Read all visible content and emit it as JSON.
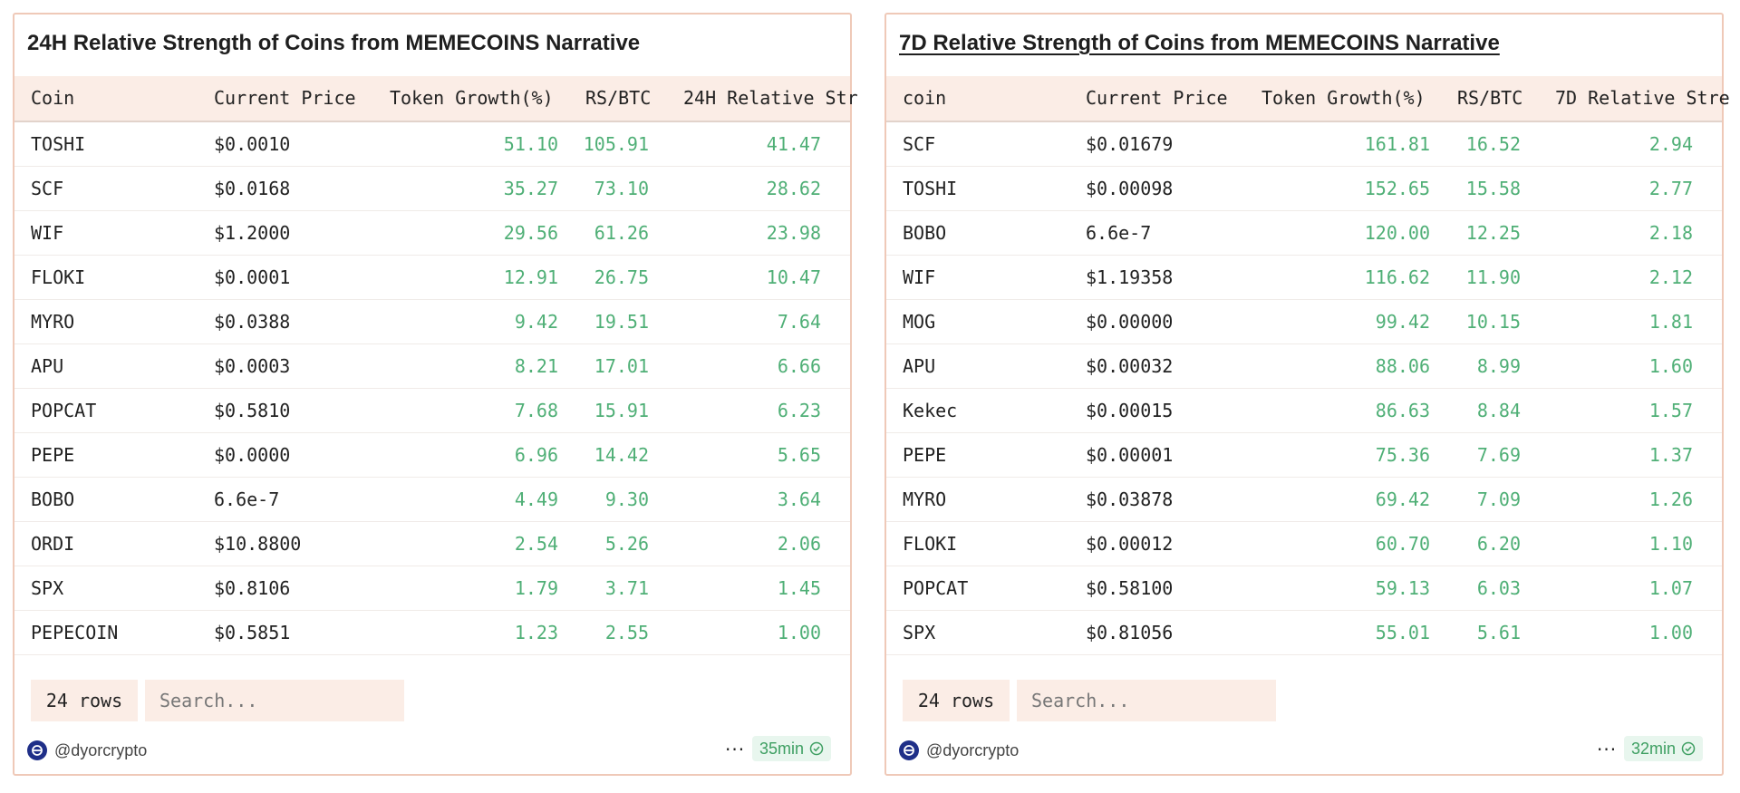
{
  "colors": {
    "accent_green": "#4faf76",
    "header_bg": "#fbede6",
    "border": "#efc9b8"
  },
  "panels": [
    {
      "title": "24H Relative Strength of Coins from MEMECOINS Narrative",
      "columns": [
        "Coin",
        "Current Price",
        "Token Growth(%)",
        "RS/BTC",
        "24H Relative Str"
      ],
      "rows": [
        [
          "TOSHI",
          "$0.0010",
          "51.10",
          "105.91",
          "41.47"
        ],
        [
          "SCF",
          "$0.0168",
          "35.27",
          "73.10",
          "28.62"
        ],
        [
          "WIF",
          "$1.2000",
          "29.56",
          "61.26",
          "23.98"
        ],
        [
          "FLOKI",
          "$0.0001",
          "12.91",
          "26.75",
          "10.47"
        ],
        [
          "MYRO",
          "$0.0388",
          "9.42",
          "19.51",
          "7.64"
        ],
        [
          "APU",
          "$0.0003",
          "8.21",
          "17.01",
          "6.66"
        ],
        [
          "POPCAT",
          "$0.5810",
          "7.68",
          "15.91",
          "6.23"
        ],
        [
          "PEPE",
          "$0.0000",
          "6.96",
          "14.42",
          "5.65"
        ],
        [
          "BOBO",
          "6.6e-7",
          "4.49",
          "9.30",
          "3.64"
        ],
        [
          "ORDI",
          "$10.8800",
          "2.54",
          "5.26",
          "2.06"
        ],
        [
          "SPX",
          "$0.8106",
          "1.79",
          "3.71",
          "1.45"
        ],
        [
          "PEPECOIN",
          "$0.5851",
          "1.23",
          "2.55",
          "1.00"
        ]
      ],
      "rows_label": "24 rows",
      "search_placeholder": "Search...",
      "credit": "@dyorcrypto",
      "more_label": "···",
      "updated": "35min"
    },
    {
      "title": "7D Relative Strength of Coins from MEMECOINS Narrative",
      "columns": [
        "coin",
        "Current Price",
        "Token Growth(%)",
        "RS/BTC",
        "7D Relative Stre"
      ],
      "rows": [
        [
          "SCF",
          "$0.01679",
          "161.81",
          "16.52",
          "2.94"
        ],
        [
          "TOSHI",
          "$0.00098",
          "152.65",
          "15.58",
          "2.77"
        ],
        [
          "BOBO",
          "6.6e-7",
          "120.00",
          "12.25",
          "2.18"
        ],
        [
          "WIF",
          "$1.19358",
          "116.62",
          "11.90",
          "2.12"
        ],
        [
          "MOG",
          "$0.00000",
          "99.42",
          "10.15",
          "1.81"
        ],
        [
          "APU",
          "$0.00032",
          "88.06",
          "8.99",
          "1.60"
        ],
        [
          "Kekec",
          "$0.00015",
          "86.63",
          "8.84",
          "1.57"
        ],
        [
          "PEPE",
          "$0.00001",
          "75.36",
          "7.69",
          "1.37"
        ],
        [
          "MYRO",
          "$0.03878",
          "69.42",
          "7.09",
          "1.26"
        ],
        [
          "FLOKI",
          "$0.00012",
          "60.70",
          "6.20",
          "1.10"
        ],
        [
          "POPCAT",
          "$0.58100",
          "59.13",
          "6.03",
          "1.07"
        ],
        [
          "SPX",
          "$0.81056",
          "55.01",
          "5.61",
          "1.00"
        ]
      ],
      "rows_label": "24 rows",
      "search_placeholder": "Search...",
      "credit": "@dyorcrypto",
      "more_label": "···",
      "updated": "32min"
    }
  ]
}
